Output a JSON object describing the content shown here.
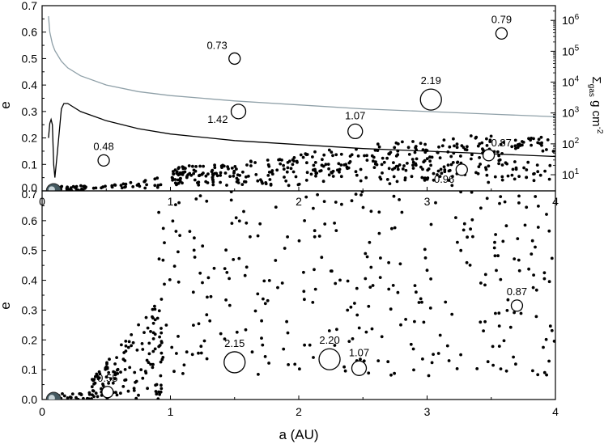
{
  "chart_data": [
    {
      "type": "scatter",
      "panel": "top",
      "xlabel": "",
      "ylabel": "e",
      "ylabel_right_main": "Σ",
      "ylabel_right_sub": "gas",
      "ylabel_right_tail": " g cm",
      "ylabel_right_exp": "-2",
      "xlim": [
        0,
        4
      ],
      "ylim": [
        0,
        0.7
      ],
      "yticks": [
        "0.0",
        "0.1",
        "0.2",
        "0.3",
        "0.4",
        "0.5",
        "0.6",
        "0.7"
      ],
      "xticks": [
        "0",
        "1",
        "2",
        "3",
        "4"
      ],
      "right_axis": {
        "scale": "log",
        "range": [
          3,
          3000000
        ],
        "ticks": [
          {
            "base": "10",
            "exp": "1"
          },
          {
            "base": "10",
            "exp": "2"
          },
          {
            "base": "10",
            "exp": "3"
          },
          {
            "base": "10",
            "exp": "4"
          },
          {
            "base": "10",
            "exp": "5"
          },
          {
            "base": "10",
            "exp": "6"
          }
        ]
      },
      "curves": [
        {
          "color": "#8fa0a8",
          "x": [
            0.05,
            0.06,
            0.08,
            0.1,
            0.15,
            0.2,
            0.3,
            0.5,
            0.75,
            1.0,
            1.5,
            2.0,
            2.5,
            3.0,
            3.5,
            4.0
          ],
          "y": [
            0.66,
            0.6,
            0.555,
            0.53,
            0.49,
            0.465,
            0.435,
            0.4,
            0.375,
            0.36,
            0.34,
            0.325,
            0.31,
            0.3,
            0.29,
            0.28
          ]
        },
        {
          "color": "#000000",
          "x": [
            0.05,
            0.06,
            0.07,
            0.08,
            0.09,
            0.1,
            0.12,
            0.15,
            0.17,
            0.2,
            0.3,
            0.5,
            0.75,
            1.0,
            1.5,
            2.0,
            2.5,
            3.0,
            3.5,
            4.0
          ],
          "y": [
            0.2,
            0.255,
            0.27,
            0.25,
            0.1,
            0.05,
            0.15,
            0.31,
            0.33,
            0.33,
            0.3,
            0.265,
            0.235,
            0.215,
            0.19,
            0.175,
            0.16,
            0.15,
            0.14,
            0.13
          ]
        }
      ],
      "planets": [
        {
          "label": "0.48",
          "a": 0.48,
          "e": 0.115,
          "size": "small"
        },
        {
          "label": "0.73",
          "a": 1.5,
          "e": 0.5,
          "size": "small"
        },
        {
          "label": "1.42",
          "a": 1.53,
          "e": 0.3,
          "size": "medium"
        },
        {
          "label": "1.07",
          "a": 2.44,
          "e": 0.225,
          "size": "medium"
        },
        {
          "label": "2.19",
          "a": 3.03,
          "e": 0.345,
          "size": "large"
        },
        {
          "label": "0.79",
          "a": 3.58,
          "e": 0.595,
          "size": "small"
        },
        {
          "label": "0.87",
          "a": 3.48,
          "e": 0.135,
          "size": "small"
        },
        {
          "label": "0.96",
          "a": 3.27,
          "e": 0.08,
          "size": "small"
        }
      ]
    },
    {
      "type": "scatter",
      "panel": "bottom",
      "xlabel": "a (AU)",
      "ylabel": "e",
      "xlim": [
        0,
        4
      ],
      "ylim": [
        0,
        0.7
      ],
      "yticks": [
        "0.0",
        "0.1",
        "0.2",
        "0.3",
        "0.4",
        "0.5",
        "0.6",
        "0.7"
      ],
      "xticks": [
        "0",
        "1",
        "2",
        "3",
        "4"
      ],
      "planets": [
        {
          "label": "0.55",
          "a": 0.51,
          "e": 0.025,
          "size": "small"
        },
        {
          "label": "2.15",
          "a": 1.5,
          "e": 0.125,
          "size": "large"
        },
        {
          "label": "2.20",
          "a": 2.24,
          "e": 0.135,
          "size": "large"
        },
        {
          "label": "1.07",
          "a": 2.47,
          "e": 0.105,
          "size": "medium"
        },
        {
          "label": "0.87",
          "a": 3.7,
          "e": 0.315,
          "size": "small"
        }
      ]
    }
  ]
}
